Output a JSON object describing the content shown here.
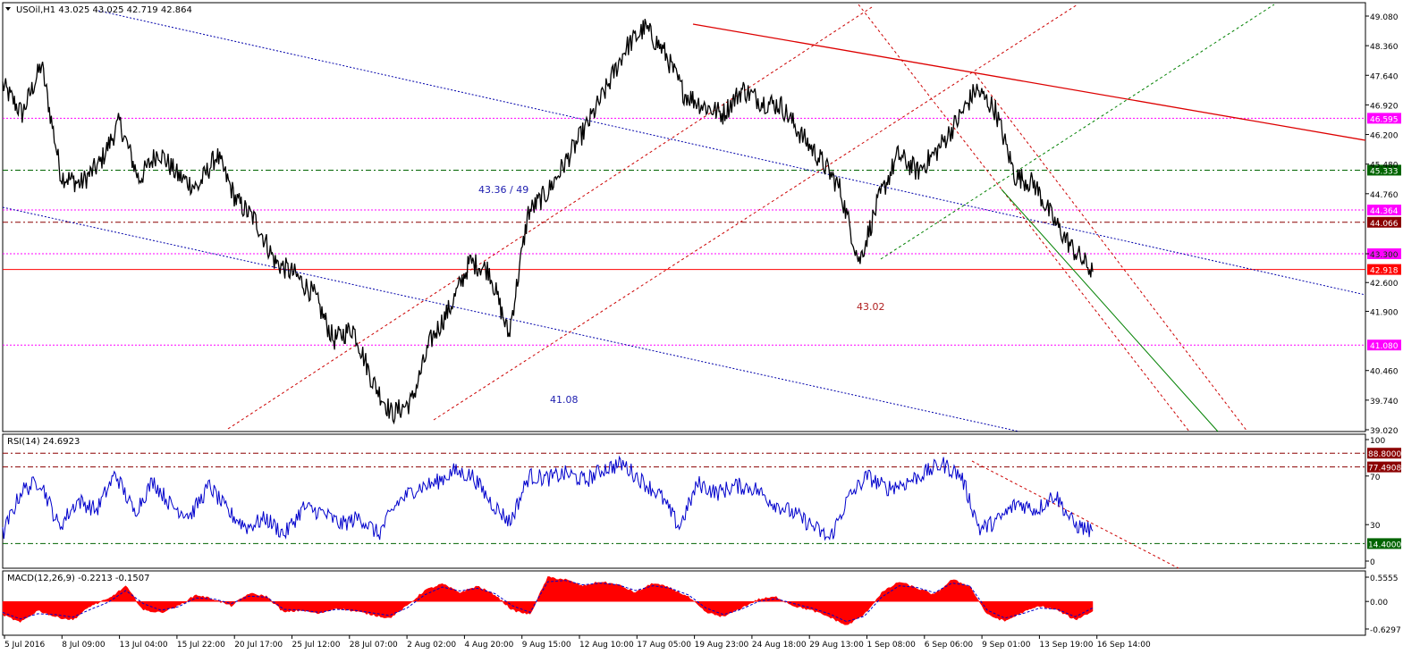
{
  "chart_data": [
    {
      "type": "line",
      "subtype": "candlestick",
      "title": "USOil,H1  43.025 43.025 42.719 42.864",
      "symbol": "USOil,H1",
      "ohlc_header": [
        "43.025",
        "43.025",
        "42.719",
        "42.864"
      ],
      "ylim": [
        39.02,
        49.08
      ],
      "y_ticks": [
        {
          "value": 49.08,
          "label": "49.080"
        },
        {
          "value": 48.36,
          "label": "48.360"
        },
        {
          "value": 47.64,
          "label": "47.640"
        },
        {
          "value": 46.92,
          "label": "46.920"
        },
        {
          "value": 46.2,
          "label": "46.200"
        },
        {
          "value": 45.48,
          "label": "45.480"
        },
        {
          "value": 44.76,
          "label": "44.760"
        },
        {
          "value": 43.3,
          "label": "43.300"
        },
        {
          "value": 42.6,
          "label": "42.600"
        },
        {
          "value": 41.9,
          "label": "41.900"
        },
        {
          "value": 40.46,
          "label": "40.460"
        },
        {
          "value": 39.74,
          "label": "39.740"
        },
        {
          "value": 39.02,
          "label": "39.020"
        }
      ],
      "x_ticks": [
        "5 Jul 2016",
        "8 Jul 09:00",
        "13 Jul 04:00",
        "15 Jul 22:00",
        "20 Jul 17:00",
        "25 Jul 12:00",
        "28 Jul 07:00",
        "2 Aug 02:00",
        "4 Aug 20:00",
        "9 Aug 15:00",
        "12 Aug 10:00",
        "17 Aug 05:00",
        "19 Aug 23:00",
        "24 Aug 18:00",
        "29 Aug 13:00",
        "1 Sep 08:00",
        "6 Sep 06:00",
        "9 Sep 01:00",
        "13 Sep 19:00",
        "16 Sep 14:00"
      ],
      "series": [
        {
          "x": [
            "5 Jul 2016",
            "6 Jul",
            "7 Jul",
            "8 Jul 09:00",
            "11 Jul",
            "12 Jul",
            "13 Jul 04:00",
            "14 Jul",
            "15 Jul 22:00",
            "18 Jul",
            "19 Jul",
            "20 Jul 17:00",
            "21 Jul",
            "22 Jul",
            "25 Jul 12:00",
            "26 Jul",
            "27 Jul",
            "28 Jul 07:00",
            "29 Jul",
            "1 Aug",
            "2 Aug 02:00",
            "2 Aug 12:00",
            "3 Aug",
            "4 Aug 20:00",
            "5 Aug",
            "8 Aug",
            "9 Aug 15:00",
            "10 Aug",
            "11 Aug",
            "12 Aug 10:00",
            "15 Aug",
            "16 Aug",
            "17 Aug 05:00",
            "18 Aug",
            "19 Aug 10:00",
            "19 Aug 23:00",
            "22 Aug",
            "23 Aug",
            "24 Aug 18:00",
            "25 Aug",
            "26 Aug",
            "29 Aug 13:00",
            "30 Aug",
            "31 Aug",
            "1 Sep 08:00",
            "2 Sep",
            "5 Sep",
            "6 Sep 06:00",
            "7 Sep",
            "8 Sep",
            "9 Sep 01:00",
            "12 Sep",
            "13 Sep",
            "13 Sep 19:00",
            "14 Sep",
            "15 Sep",
            "16 Sep 14:00"
          ],
          "values": [
            47.4,
            46.7,
            47.9,
            45.2,
            45.0,
            45.5,
            46.5,
            45.1,
            45.8,
            45.2,
            44.9,
            45.7,
            44.6,
            44.1,
            43.1,
            42.8,
            42.3,
            41.2,
            41.5,
            40.2,
            39.4,
            39.7,
            41.2,
            42.0,
            43.1,
            42.9,
            41.3,
            44.3,
            44.8,
            45.6,
            46.4,
            47.3,
            48.3,
            48.8,
            48.2,
            47.2,
            46.9,
            46.7,
            47.3,
            47.0,
            46.9,
            46.2,
            45.6,
            44.9,
            43.1,
            44.6,
            45.7,
            45.3,
            45.8,
            46.5,
            47.3,
            46.8,
            45.2,
            45.0,
            44.1,
            43.4,
            42.86
          ]
        }
      ],
      "horizontal_levels": [
        {
          "value": 46.595,
          "label": "46.595",
          "color": "#ff00ff",
          "style": "dotted"
        },
        {
          "value": 45.333,
          "label": "45.333",
          "color": "#006400",
          "style": "dash-dot"
        },
        {
          "value": 44.364,
          "label": "44.364",
          "color": "#ff00ff",
          "style": "dotted"
        },
        {
          "value": 44.066,
          "label": "44.066",
          "color": "#8b0000",
          "style": "dash-dot"
        },
        {
          "value": 43.3,
          "label": "43.300",
          "color": "#ff00ff",
          "style": "dotted"
        },
        {
          "value": 42.918,
          "label": "42.918",
          "color": "#ff0000",
          "style": "solid"
        },
        {
          "value": 41.08,
          "label": "41.080",
          "color": "#ff00ff",
          "style": "dotted"
        }
      ],
      "annotations": [
        {
          "text": "43.36 / 49",
          "color": "#2020b0"
        },
        {
          "text": "41.08",
          "color": "#2020b0"
        },
        {
          "text": "43.02",
          "color": "#b02020"
        }
      ]
    },
    {
      "type": "line",
      "title": "RSI(14) 24.6923",
      "name": "RSI(14)",
      "current": "24.6923",
      "ylim": [
        0,
        100
      ],
      "y_ticks": [
        {
          "value": 100,
          "label": "100"
        },
        {
          "value": 70,
          "label": "70"
        },
        {
          "value": 30,
          "label": "30"
        },
        {
          "value": 0,
          "label": "0"
        }
      ],
      "levels": [
        {
          "value": 88.8,
          "label": "88.8000",
          "color": "#8b0000"
        },
        {
          "value": 77.4908,
          "label": "77.4908",
          "color": "#8b0000"
        },
        {
          "value": 14.4,
          "label": "14.4000",
          "color": "#006400"
        }
      ],
      "series": [
        {
          "color": "#0000cc",
          "values": [
            22,
            58,
            66,
            28,
            50,
            42,
            72,
            40,
            66,
            45,
            38,
            62,
            40,
            28,
            35,
            22,
            44,
            40,
            30,
            36,
            22,
            48,
            60,
            64,
            74,
            70,
            48,
            32,
            70,
            68,
            72,
            66,
            76,
            80,
            66,
            54,
            28,
            64,
            56,
            62,
            60,
            48,
            40,
            30,
            18,
            52,
            70,
            60,
            64,
            72,
            80,
            70,
            26,
            34,
            48,
            42,
            55,
            30,
            24.7
          ]
        }
      ]
    },
    {
      "type": "bar",
      "title": "MACD(12,26,9) -0.2213 -0.1507",
      "name": "MACD(12,26,9)",
      "current": [
        "-0.2213",
        "-0.1507"
      ],
      "ylim": [
        -0.6297,
        0.5555
      ],
      "y_ticks": [
        {
          "value": 0.5555,
          "label": "0.5555"
        },
        {
          "value": 0.0,
          "label": "0.00"
        },
        {
          "value": -0.6297,
          "label": "-0.6297"
        }
      ],
      "series": [
        {
          "name": "MACD",
          "color": "#ff0000",
          "values": [
            -0.3,
            -0.48,
            -0.2,
            -0.35,
            -0.42,
            -0.1,
            0.05,
            0.35,
            -0.2,
            -0.25,
            -0.1,
            0.15,
            0.05,
            -0.1,
            0.18,
            0.12,
            -0.25,
            -0.2,
            -0.28,
            -0.15,
            -0.22,
            -0.3,
            -0.38,
            -0.1,
            0.25,
            0.4,
            0.2,
            0.35,
            0.15,
            -0.2,
            -0.3,
            0.55,
            0.5,
            0.35,
            0.45,
            0.38,
            0.2,
            0.42,
            0.3,
            0.1,
            -0.25,
            -0.35,
            -0.15,
            0.05,
            0.1,
            -0.1,
            -0.2,
            -0.35,
            -0.55,
            -0.3,
            0.2,
            0.45,
            0.3,
            0.15,
            0.5,
            0.35,
            -0.3,
            -0.45,
            -0.25,
            -0.1,
            -0.2,
            -0.42,
            -0.22
          ]
        },
        {
          "name": "Signal",
          "color": "#0000cc",
          "values": [
            -0.25,
            -0.4,
            -0.28,
            -0.3,
            -0.36,
            -0.18,
            -0.02,
            0.25,
            -0.05,
            -0.2,
            -0.12,
            0.08,
            0.06,
            -0.05,
            0.12,
            0.1,
            -0.18,
            -0.2,
            -0.25,
            -0.18,
            -0.2,
            -0.26,
            -0.32,
            -0.15,
            0.15,
            0.33,
            0.24,
            0.3,
            0.18,
            -0.1,
            -0.25,
            0.45,
            0.48,
            0.38,
            0.42,
            0.38,
            0.25,
            0.36,
            0.3,
            0.15,
            -0.15,
            -0.3,
            -0.18,
            0.0,
            0.06,
            -0.05,
            -0.15,
            -0.28,
            -0.46,
            -0.34,
            0.1,
            0.36,
            0.32,
            0.2,
            0.42,
            0.36,
            -0.2,
            -0.38,
            -0.28,
            -0.15,
            -0.18,
            -0.35,
            -0.15
          ]
        }
      ]
    }
  ]
}
